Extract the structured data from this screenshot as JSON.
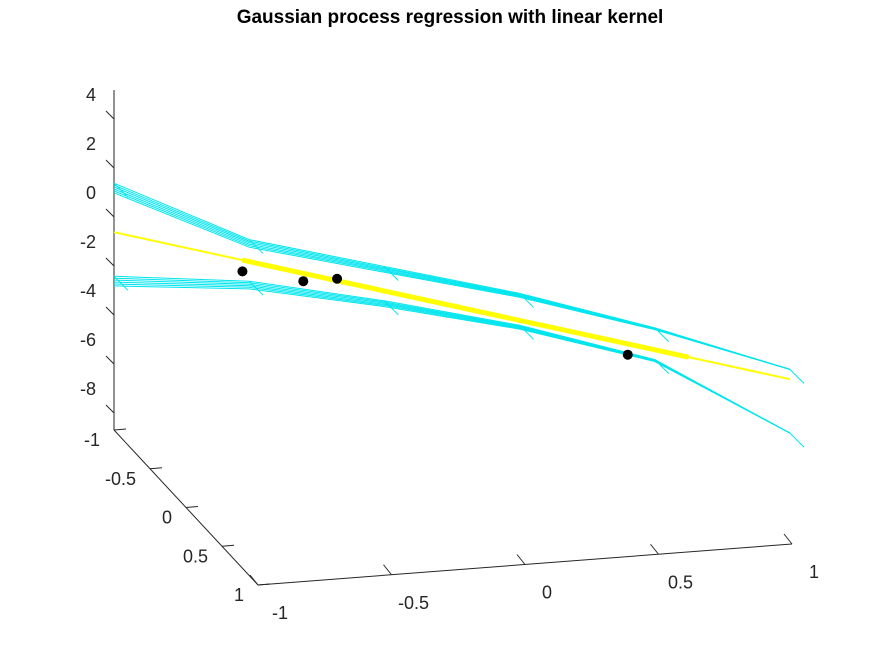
{
  "chart_data": {
    "type": "surface",
    "title": "Gaussian process regression with linear kernel",
    "x_ticks": [
      "-1",
      "-0.5",
      "0",
      "0.5",
      "1"
    ],
    "y_ticks": [
      "-1",
      "-0.5",
      "0",
      "0.5",
      "1"
    ],
    "z_ticks": [
      "4",
      "2",
      "0",
      "-2",
      "-4",
      "-6",
      "-8"
    ],
    "xlim": [
      -1,
      1
    ],
    "ylim": [
      -1,
      1
    ],
    "zlim": [
      -9,
      4
    ],
    "mean_line": {
      "color": "#ffff00",
      "points": [
        [
          -1,
          -1.6
        ],
        [
          1,
          -7.6
        ]
      ]
    },
    "upper_band": {
      "color": "#00e5ee",
      "points": [
        [
          -1,
          0.4
        ],
        [
          -0.6,
          -1.9
        ],
        [
          -0.2,
          -3.0
        ],
        [
          0.2,
          -4.1
        ],
        [
          0.6,
          -5.5
        ],
        [
          1,
          -7.2
        ]
      ]
    },
    "lower_band": {
      "color": "#00e5ee",
      "points": [
        [
          -1,
          -3.4
        ],
        [
          -0.6,
          -3.6
        ],
        [
          -0.2,
          -4.4
        ],
        [
          0.2,
          -5.4
        ],
        [
          0.6,
          -6.8
        ],
        [
          1,
          -9.8
        ]
      ]
    },
    "training_points": [
      {
        "x": -0.62,
        "z": -3.2
      },
      {
        "x": -0.44,
        "z": -3.6
      },
      {
        "x": -0.34,
        "z": -3.5
      },
      {
        "x": 0.52,
        "z": -6.6
      }
    ]
  }
}
